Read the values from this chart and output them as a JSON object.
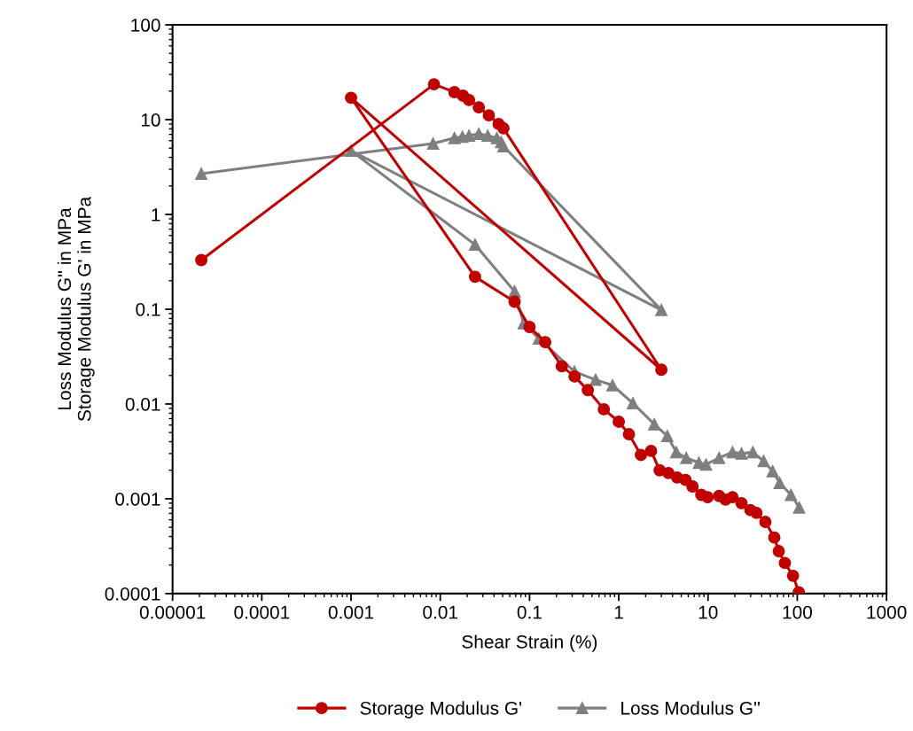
{
  "chart_data": {
    "type": "line",
    "xlabel": "Shear Strain (%)",
    "ylabel": "Loss Modulus G'' in MPa\nStorage Modulus G' in MPa",
    "log": "xy",
    "grid": false,
    "legend": "bottom",
    "line_style": "solid",
    "xlim": [
      1e-05,
      1000
    ],
    "ylim": [
      0.0001,
      100
    ],
    "xticks": [
      {
        "value": 1e-05,
        "label": "0.00001"
      },
      {
        "value": 0.0001,
        "label": "0.0001"
      },
      {
        "value": 0.001,
        "label": "0.001"
      },
      {
        "value": 0.01,
        "label": "0.01"
      },
      {
        "value": 0.1,
        "label": "0.1"
      },
      {
        "value": 1,
        "label": "1"
      },
      {
        "value": 10,
        "label": "10"
      },
      {
        "value": 100,
        "label": "100"
      },
      {
        "value": 1000,
        "label": "1000"
      }
    ],
    "yticks": [
      {
        "value": 0.0001,
        "label": "0.0001"
      },
      {
        "value": 0.001,
        "label": "0.001"
      },
      {
        "value": 0.01,
        "label": "0.01"
      },
      {
        "value": 0.1,
        "label": "0.1"
      },
      {
        "value": 1,
        "label": "1"
      },
      {
        "value": 10,
        "label": "10"
      },
      {
        "value": 100,
        "label": "100"
      }
    ],
    "series": [
      {
        "name": "Storage Modulus G'",
        "color": "#c00000",
        "marker": "circle",
        "x": [
          2.1e-05,
          0.0085,
          0.0144,
          0.018,
          0.021,
          0.027,
          0.035,
          0.045,
          0.051,
          3.0,
          0.001,
          0.0245,
          0.068,
          0.1,
          0.15,
          0.23,
          0.32,
          0.45,
          0.68,
          1.0,
          1.3,
          1.77,
          2.3,
          2.87,
          3.6,
          4.5,
          5.6,
          6.7,
          8.4,
          9.9,
          13.3,
          15.7,
          18.8,
          23.7,
          29.8,
          34.9,
          43.9,
          55.3,
          62,
          72.6,
          89.6,
          104
        ],
        "values": [
          0.33,
          23.6,
          19.5,
          17.9,
          16.1,
          13.5,
          11.1,
          9.0,
          8.1,
          0.023,
          17,
          0.22,
          0.12,
          0.065,
          0.045,
          0.025,
          0.0195,
          0.014,
          0.0088,
          0.0065,
          0.0048,
          0.0029,
          0.0032,
          0.002,
          0.00187,
          0.00168,
          0.00158,
          0.00135,
          0.0011,
          0.00104,
          0.00107,
          0.00098,
          0.00104,
          0.0009,
          0.00076,
          0.00071,
          0.00057,
          0.00039,
          0.00028,
          0.00021,
          0.000154,
          0.000103
        ]
      },
      {
        "name": "Loss Modulus G''",
        "color": "#7f7f7f",
        "marker": "triangle",
        "x": [
          2.1e-05,
          0.0083,
          0.0144,
          0.0177,
          0.021,
          0.027,
          0.034,
          0.043,
          0.048,
          0.051,
          3.0,
          0.001,
          0.0245,
          0.068,
          0.086,
          0.127,
          0.318,
          0.55,
          0.85,
          1.44,
          2.5,
          3.5,
          4.4,
          5.7,
          7.9,
          9.5,
          13.3,
          18.8,
          23.7,
          31.8,
          42,
          53,
          63.5,
          85,
          105
        ],
        "values": [
          2.69,
          5.6,
          6.4,
          6.6,
          6.8,
          7.1,
          6.8,
          6.4,
          5.8,
          5.25,
          0.098,
          4.7,
          0.48,
          0.154,
          0.071,
          0.049,
          0.022,
          0.018,
          0.0158,
          0.0102,
          0.0061,
          0.0046,
          0.0031,
          0.0027,
          0.0024,
          0.0023,
          0.0027,
          0.0031,
          0.003,
          0.0031,
          0.0025,
          0.00195,
          0.00147,
          0.0011,
          0.00081
        ]
      }
    ]
  }
}
